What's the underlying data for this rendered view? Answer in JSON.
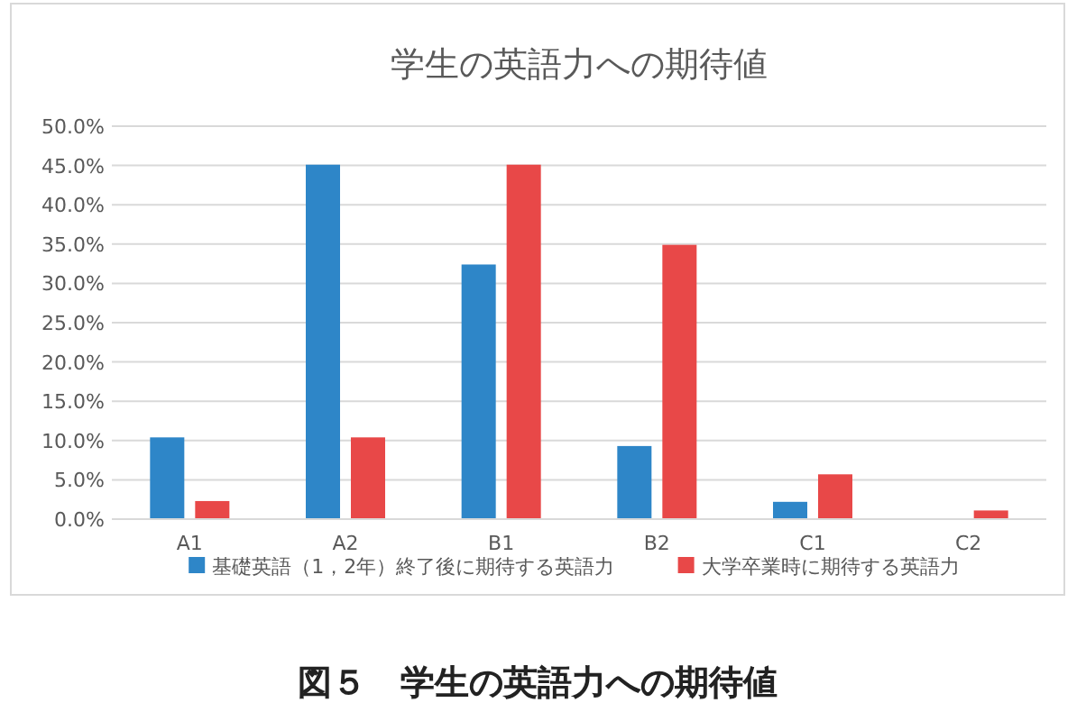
{
  "chart_data": {
    "type": "bar",
    "title": "学生の英語力への期待値",
    "categories": [
      "A1",
      "A2",
      "B1",
      "B2",
      "C1",
      "C2"
    ],
    "series": [
      {
        "name": "基礎英語（1，2年）終了後に期待する英語力",
        "color": "#2e86c8",
        "values": [
          10.4,
          45.1,
          32.4,
          9.3,
          2.2,
          0
        ]
      },
      {
        "name": "大学卒業時に期待する英語力",
        "color": "#e84848",
        "values": [
          2.3,
          10.4,
          45.1,
          34.9,
          5.7,
          1.1
        ]
      }
    ],
    "ylim": [
      0,
      50
    ],
    "yticks": [
      {
        "value": 0,
        "label": "0.0%"
      },
      {
        "value": 5,
        "label": "5.0%"
      },
      {
        "value": 10,
        "label": "10.0%"
      },
      {
        "value": 15,
        "label": "15.0%"
      },
      {
        "value": 20,
        "label": "20.0%"
      },
      {
        "value": 25,
        "label": "25.0%"
      },
      {
        "value": 30,
        "label": "30.0%"
      },
      {
        "value": 35,
        "label": "35.0%"
      },
      {
        "value": 40,
        "label": "40.0%"
      },
      {
        "value": 45,
        "label": "45.0%"
      },
      {
        "value": 50,
        "label": "50.0%"
      }
    ],
    "grid": "y",
    "legend": "bottom",
    "annotations": [
      "図５　学生の英語力への期待値"
    ]
  }
}
